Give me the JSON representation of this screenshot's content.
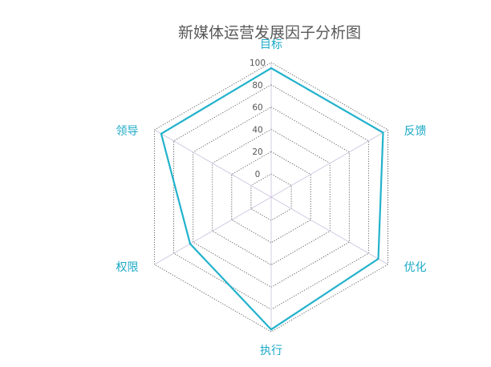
{
  "chart_data": {
    "type": "radar",
    "title": "新媒体运营发展因子分析图",
    "categories": [
      "目标",
      "反馈",
      "优化",
      "执行",
      "权限",
      "领导"
    ],
    "series": [
      {
        "values": [
          95,
          95,
          90,
          98,
          63,
          93
        ]
      }
    ],
    "rlim": [
      0,
      100
    ],
    "ticks": [
      0,
      20,
      40,
      60,
      80,
      100
    ],
    "grid": true,
    "legend": "none",
    "colors": {
      "series": "#22b2cc",
      "label": "#1ba9c6",
      "grid": "#555555",
      "axis": "#c8bfdc"
    }
  }
}
